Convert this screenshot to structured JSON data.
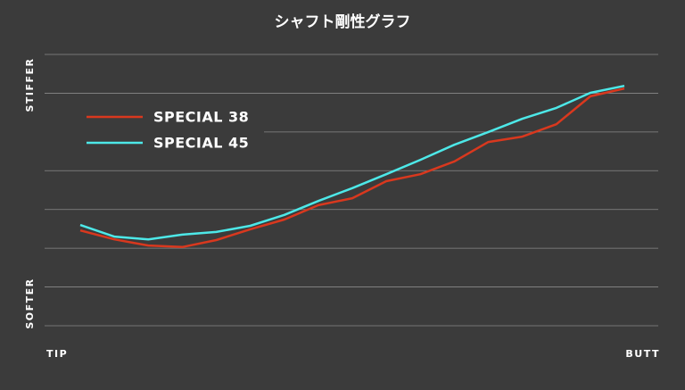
{
  "chart_data": {
    "type": "line",
    "title": "シャフト剛性グラフ",
    "y_label_top": "STIFFER",
    "y_label_bottom": "SOFTER",
    "x_label_left": "TIP",
    "x_label_right": "BUTT",
    "ylim": [
      0,
      7
    ],
    "yticks": [
      0,
      1,
      2,
      3,
      4,
      5,
      6,
      7
    ],
    "grid": true,
    "legend": "upper left",
    "series": [
      {
        "name": "SPECIAL 38",
        "color": "#d9381e",
        "values": [
          2.46,
          2.23,
          2.07,
          2.03,
          2.21,
          2.49,
          2.74,
          3.11,
          3.29,
          3.73,
          3.91,
          4.24,
          4.74,
          4.88,
          5.2,
          5.92,
          6.12
        ]
      },
      {
        "name": "SPECIAL 45",
        "color": "#4de8e8",
        "values": [
          2.6,
          2.3,
          2.23,
          2.35,
          2.42,
          2.58,
          2.86,
          3.22,
          3.55,
          3.91,
          4.28,
          4.67,
          5.0,
          5.34,
          5.62,
          6.01,
          6.19
        ]
      }
    ]
  }
}
